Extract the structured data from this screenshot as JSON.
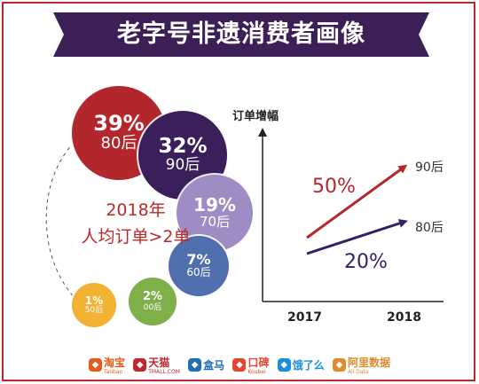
{
  "title": "老字号非遗消费者画像",
  "colors": {
    "banner": "#3c1f56",
    "accent_red": "#b92b2b",
    "navy": "#2c2563",
    "frame": "#b92b2b"
  },
  "center_text": {
    "line1": "2018年",
    "line2": "人均订单>2单"
  },
  "chart_data": [
    {
      "type": "bubble",
      "title": "",
      "categories": [
        "80后",
        "90后",
        "70后",
        "60后",
        "00后",
        "50后"
      ],
      "values": [
        39,
        32,
        19,
        7,
        2,
        1
      ],
      "labels": [
        "39%",
        "32%",
        "19%",
        "7%",
        "2%",
        "1%"
      ],
      "colors": [
        "#b3262b",
        "#3a1f5a",
        "#9e8cc4",
        "#4f6fae",
        "#7fb04a",
        "#f2b234"
      ]
    },
    {
      "type": "line",
      "title": "",
      "ylabel": "订单增幅",
      "x": [
        "2017",
        "2018"
      ],
      "series": [
        {
          "name": "90后",
          "label": "50%",
          "color": "#b3262b"
        },
        {
          "name": "80后",
          "label": "20%",
          "color": "#2c2563"
        }
      ]
    }
  ],
  "logos": [
    {
      "icon": "taobao-logo-icon",
      "text": "淘宝",
      "sub": "Taobao",
      "color": "#e75a1c"
    },
    {
      "icon": "tmall-logo-icon",
      "text": "天猫",
      "sub": "TMALL.COM",
      "color": "#c1272d"
    },
    {
      "icon": "hema-logo-icon",
      "text": "盒马",
      "sub": "",
      "color": "#1e6fb8"
    },
    {
      "icon": "koubei-logo-icon",
      "text": "口碑",
      "sub": "Koubei",
      "color": "#e8442b"
    },
    {
      "icon": "eleme-logo-icon",
      "text": "饿了么",
      "sub": "",
      "color": "#1a8fe0"
    },
    {
      "icon": "ali-data-logo-icon",
      "text": "阿里数据",
      "sub": "Ali Data",
      "color": "#e08a2a"
    }
  ]
}
